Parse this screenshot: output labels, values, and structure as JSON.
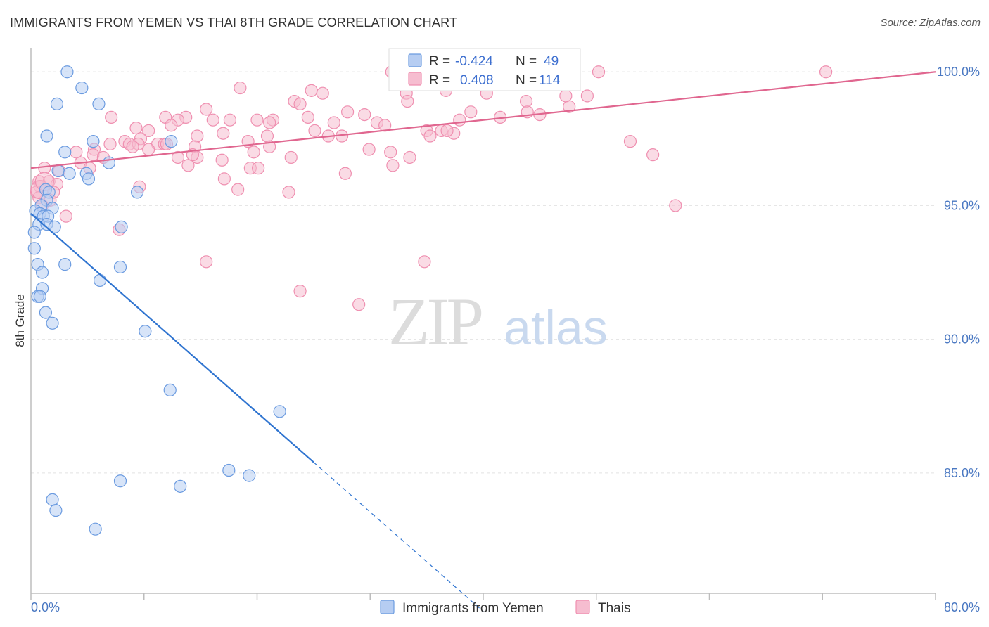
{
  "header": {
    "title": "IMMIGRANTS FROM YEMEN VS THAI 8TH GRADE CORRELATION CHART",
    "source": "Source: ZipAtlas.com"
  },
  "watermark": {
    "part1": "ZIP",
    "part2": "atlas"
  },
  "colors": {
    "yemen": "#6b9be0",
    "yemen_fill": "#b6cdf2",
    "yemen_line": "#2f74d0",
    "thai": "#ef8fb0",
    "thai_fill": "#f6bdd0",
    "thai_line": "#e0668f",
    "tick_text": "#4a78c2",
    "grid": "#e2e2e2"
  },
  "legend": {
    "rows": [
      {
        "r_label": "R =",
        "r_value": "-0.424",
        "n_label": "N =",
        "n_value": "49"
      },
      {
        "r_label": "R =",
        "r_value": "0.408",
        "n_label": "N =",
        "n_value": "114"
      }
    ]
  },
  "chart_data": {
    "type": "scatter",
    "title": "IMMIGRANTS FROM YEMEN VS THAI 8TH GRADE CORRELATION CHART",
    "xlabel": "",
    "ylabel": "8th Grade",
    "xlim": [
      0,
      80
    ],
    "ylim": [
      80.5,
      100.9
    ],
    "x_tick_labels": [
      "0.0%",
      "80.0%"
    ],
    "y_ticks": [
      85,
      90,
      95,
      100
    ],
    "y_tick_labels": [
      "85.0%",
      "90.0%",
      "95.0%",
      "100.0%"
    ],
    "legend_position": "top-center",
    "series": [
      {
        "name": "Immigrants from Yemen",
        "R": -0.424,
        "N": 49,
        "trend": {
          "x0": 0,
          "y0": 94.7,
          "x1": 25,
          "y1": 85.4,
          "dashed_to_x": 40
        },
        "points": [
          [
            3.2,
            100.0
          ],
          [
            4.5,
            99.4
          ],
          [
            2.3,
            98.8
          ],
          [
            6.0,
            98.8
          ],
          [
            1.4,
            97.6
          ],
          [
            5.5,
            97.4
          ],
          [
            12.4,
            97.4
          ],
          [
            3.0,
            97.0
          ],
          [
            6.9,
            96.6
          ],
          [
            2.4,
            96.3
          ],
          [
            3.4,
            96.2
          ],
          [
            4.9,
            96.2
          ],
          [
            5.1,
            96.0
          ],
          [
            1.3,
            95.6
          ],
          [
            1.6,
            95.5
          ],
          [
            9.4,
            95.5
          ],
          [
            1.4,
            95.2
          ],
          [
            0.9,
            95.0
          ],
          [
            1.9,
            94.9
          ],
          [
            0.4,
            94.8
          ],
          [
            0.8,
            94.7
          ],
          [
            1.1,
            94.6
          ],
          [
            1.5,
            94.6
          ],
          [
            0.7,
            94.3
          ],
          [
            1.4,
            94.3
          ],
          [
            2.1,
            94.2
          ],
          [
            8.0,
            94.2
          ],
          [
            0.3,
            94.0
          ],
          [
            0.3,
            93.4
          ],
          [
            0.6,
            92.8
          ],
          [
            3.0,
            92.8
          ],
          [
            7.9,
            92.7
          ],
          [
            1.0,
            92.5
          ],
          [
            6.1,
            92.2
          ],
          [
            1.0,
            91.9
          ],
          [
            0.6,
            91.6
          ],
          [
            0.8,
            91.6
          ],
          [
            1.3,
            91.0
          ],
          [
            1.9,
            90.6
          ],
          [
            10.1,
            90.3
          ],
          [
            12.3,
            88.1
          ],
          [
            22.0,
            87.3
          ],
          [
            17.5,
            85.1
          ],
          [
            19.3,
            84.9
          ],
          [
            7.9,
            84.7
          ],
          [
            13.2,
            84.5
          ],
          [
            1.9,
            84.0
          ],
          [
            2.2,
            83.6
          ],
          [
            5.7,
            82.9
          ]
        ]
      },
      {
        "name": "Thais",
        "R": 0.408,
        "N": 114,
        "trend": {
          "x0": 0,
          "y0": 96.4,
          "x1": 80,
          "y1": 100.0
        },
        "points": [
          [
            31.9,
            100.0
          ],
          [
            32.9,
            100.0
          ],
          [
            39.7,
            100.0
          ],
          [
            50.2,
            100.0
          ],
          [
            70.3,
            100.0
          ],
          [
            40.0,
            99.9
          ],
          [
            18.5,
            99.4
          ],
          [
            24.8,
            99.3
          ],
          [
            25.8,
            99.2
          ],
          [
            33.2,
            99.2
          ],
          [
            40.3,
            99.2
          ],
          [
            49.2,
            99.1
          ],
          [
            33.3,
            98.9
          ],
          [
            23.3,
            98.9
          ],
          [
            23.8,
            98.8
          ],
          [
            47.6,
            98.7
          ],
          [
            15.5,
            98.6
          ],
          [
            38.9,
            98.5
          ],
          [
            28.0,
            98.5
          ],
          [
            29.5,
            98.4
          ],
          [
            24.5,
            98.3
          ],
          [
            7.1,
            98.3
          ],
          [
            11.9,
            98.3
          ],
          [
            13.7,
            98.3
          ],
          [
            17.6,
            98.2
          ],
          [
            20.0,
            98.2
          ],
          [
            21.4,
            98.2
          ],
          [
            37.9,
            98.2
          ],
          [
            45.0,
            98.4
          ],
          [
            13.0,
            98.2
          ],
          [
            16.1,
            98.2
          ],
          [
            21.1,
            98.1
          ],
          [
            26.8,
            98.1
          ],
          [
            30.6,
            98.1
          ],
          [
            31.3,
            98.0
          ],
          [
            12.4,
            98.0
          ],
          [
            9.3,
            97.9
          ],
          [
            35.0,
            97.8
          ],
          [
            10.4,
            97.8
          ],
          [
            25.1,
            97.8
          ],
          [
            36.3,
            97.8
          ],
          [
            37.4,
            97.7
          ],
          [
            17.0,
            97.7
          ],
          [
            26.3,
            97.6
          ],
          [
            27.5,
            97.6
          ],
          [
            14.7,
            97.6
          ],
          [
            20.9,
            97.6
          ],
          [
            9.7,
            97.5
          ],
          [
            8.3,
            97.4
          ],
          [
            19.2,
            97.4
          ],
          [
            8.7,
            97.3
          ],
          [
            11.2,
            97.3
          ],
          [
            11.8,
            97.3
          ],
          [
            7.0,
            97.3
          ],
          [
            9.5,
            97.3
          ],
          [
            9.0,
            97.2
          ],
          [
            21.1,
            97.2
          ],
          [
            14.5,
            97.2
          ],
          [
            53.0,
            97.4
          ],
          [
            5.6,
            97.1
          ],
          [
            10.4,
            97.1
          ],
          [
            29.9,
            97.1
          ],
          [
            31.8,
            97.0
          ],
          [
            19.7,
            97.0
          ],
          [
            4.0,
            97.0
          ],
          [
            5.5,
            96.9
          ],
          [
            6.4,
            96.8
          ],
          [
            13.0,
            96.8
          ],
          [
            14.7,
            96.8
          ],
          [
            23.0,
            96.8
          ],
          [
            33.5,
            96.8
          ],
          [
            16.9,
            96.7
          ],
          [
            4.4,
            96.6
          ],
          [
            13.9,
            96.5
          ],
          [
            32.0,
            96.5
          ],
          [
            19.4,
            96.4
          ],
          [
            20.1,
            96.4
          ],
          [
            2.5,
            96.3
          ],
          [
            27.8,
            96.2
          ],
          [
            17.1,
            96.0
          ],
          [
            0.7,
            95.9
          ],
          [
            1.6,
            95.9
          ],
          [
            2.3,
            95.8
          ],
          [
            9.6,
            95.7
          ],
          [
            0.8,
            95.7
          ],
          [
            18.3,
            95.6
          ],
          [
            22.8,
            95.5
          ],
          [
            0.5,
            95.5
          ],
          [
            0.7,
            95.3
          ],
          [
            1.7,
            95.2
          ],
          [
            1.0,
            95.0
          ],
          [
            55.0,
            96.9
          ],
          [
            57.0,
            95.0
          ],
          [
            3.1,
            94.6
          ],
          [
            7.8,
            94.1
          ],
          [
            15.5,
            92.9
          ],
          [
            34.8,
            92.9
          ],
          [
            23.8,
            91.8
          ],
          [
            29.0,
            91.3
          ],
          [
            37.5,
            99.7
          ],
          [
            47.3,
            99.1
          ],
          [
            36.7,
            99.3
          ],
          [
            38.5,
            100.0
          ],
          [
            38.1,
            99.9
          ],
          [
            43.8,
            98.9
          ],
          [
            41.5,
            98.3
          ],
          [
            43.9,
            98.5
          ],
          [
            35.3,
            97.6
          ],
          [
            36.8,
            97.8
          ],
          [
            14.3,
            96.9
          ],
          [
            12.0,
            97.3
          ],
          [
            2.0,
            95.5
          ],
          [
            1.2,
            96.4
          ],
          [
            5.2,
            96.4
          ]
        ]
      }
    ]
  }
}
